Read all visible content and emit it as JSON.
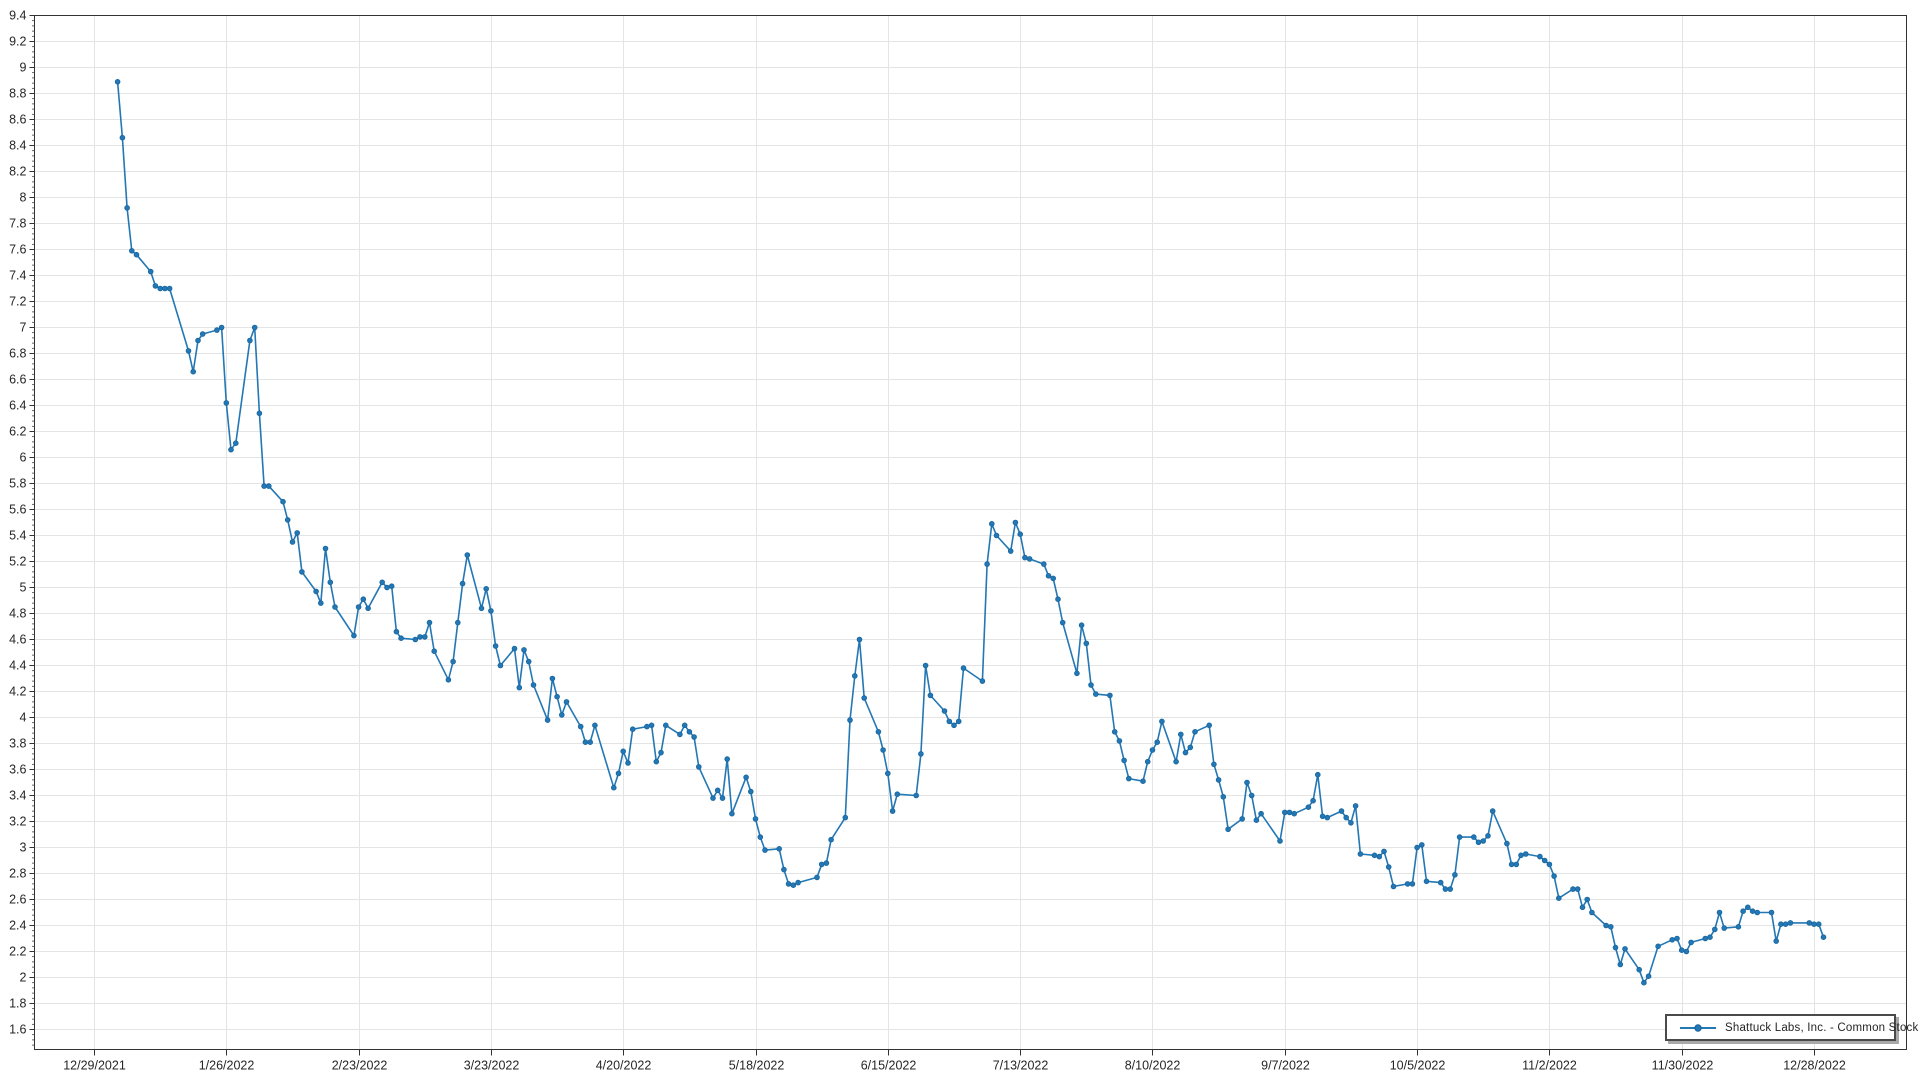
{
  "legend": {
    "label": "Shattuck Labs, Inc. - Common Stock"
  },
  "colors": {
    "line": "#2277B4",
    "marker_fill": "#2277B4",
    "marker_edge": "#18669E",
    "grid": "#E4E4E4",
    "axis": "#333333",
    "tick_text": "#262626",
    "legend_border": "#4A4A4A",
    "legend_shadow": "#A9A9A9",
    "background": "#FFFFFF"
  },
  "chart_data": {
    "type": "line",
    "title": "",
    "xlabel": "",
    "ylabel": "",
    "grid": true,
    "legend_position": "bottom-right",
    "y_axis": {
      "min": 1.45,
      "max": 9.4,
      "tick_step": 0.2,
      "minor_tick_step": 0.04,
      "tick_labels": [
        "9.4",
        "9.2",
        "9",
        "8.8",
        "8.6",
        "8.4",
        "8.2",
        "8",
        "7.8",
        "7.6",
        "7.4",
        "7.2",
        "7",
        "6.8",
        "6.6",
        "6.4",
        "6.2",
        "6",
        "5.8",
        "5.6",
        "5.4",
        "5.2",
        "5",
        "4.8",
        "4.6",
        "4.4",
        "4.2",
        "4",
        "3.8",
        "3.6",
        "3.4",
        "3.2",
        "3",
        "2.8",
        "2.6",
        "2.4",
        "2.2",
        "2",
        "1.8",
        "1.6"
      ]
    },
    "x_axis": {
      "tick_labels": [
        "12/29/2021",
        "1/26/2022",
        "2/23/2022",
        "3/23/2022",
        "4/20/2022",
        "5/18/2022",
        "6/15/2022",
        "7/13/2022",
        "8/10/2022",
        "9/7/2022",
        "10/5/2022",
        "11/2/2022",
        "11/30/2022",
        "12/28/2022"
      ]
    },
    "series": [
      {
        "name": "Shattuck Labs, Inc. - Common Stock",
        "points": [
          [
            "1/3/2022",
            8.89
          ],
          [
            "1/4/2022",
            8.46
          ],
          [
            "1/5/2022",
            7.92
          ],
          [
            "1/6/2022",
            7.59
          ],
          [
            "1/7/2022",
            7.56
          ],
          [
            "1/10/2022",
            7.43
          ],
          [
            "1/11/2022",
            7.32
          ],
          [
            "1/12/2022",
            7.3
          ],
          [
            "1/13/2022",
            7.3
          ],
          [
            "1/14/2022",
            7.3
          ],
          [
            "1/18/2022",
            6.82
          ],
          [
            "1/19/2022",
            6.66
          ],
          [
            "1/20/2022",
            6.9
          ],
          [
            "1/21/2022",
            6.95
          ],
          [
            "1/24/2022",
            6.98
          ],
          [
            "1/25/2022",
            7.0
          ],
          [
            "1/26/2022",
            6.42
          ],
          [
            "1/27/2022",
            6.06
          ],
          [
            "1/28/2022",
            6.11
          ],
          [
            "1/31/2022",
            6.9
          ],
          [
            "2/1/2022",
            7.0
          ],
          [
            "2/2/2022",
            6.34
          ],
          [
            "2/3/2022",
            5.78
          ],
          [
            "2/4/2022",
            5.78
          ],
          [
            "2/7/2022",
            5.66
          ],
          [
            "2/8/2022",
            5.52
          ],
          [
            "2/9/2022",
            5.35
          ],
          [
            "2/10/2022",
            5.42
          ],
          [
            "2/11/2022",
            5.12
          ],
          [
            "2/14/2022",
            4.97
          ],
          [
            "2/15/2022",
            4.88
          ],
          [
            "2/16/2022",
            5.3
          ],
          [
            "2/17/2022",
            5.04
          ],
          [
            "2/18/2022",
            4.85
          ],
          [
            "2/22/2022",
            4.63
          ],
          [
            "2/23/2022",
            4.85
          ],
          [
            "2/24/2022",
            4.91
          ],
          [
            "2/25/2022",
            4.84
          ],
          [
            "2/28/2022",
            5.04
          ],
          [
            "3/1/2022",
            5.0
          ],
          [
            "3/2/2022",
            5.01
          ],
          [
            "3/3/2022",
            4.66
          ],
          [
            "3/4/2022",
            4.61
          ],
          [
            "3/7/2022",
            4.6
          ],
          [
            "3/8/2022",
            4.62
          ],
          [
            "3/9/2022",
            4.62
          ],
          [
            "3/10/2022",
            4.73
          ],
          [
            "3/11/2022",
            4.51
          ],
          [
            "3/14/2022",
            4.29
          ],
          [
            "3/15/2022",
            4.43
          ],
          [
            "3/16/2022",
            4.73
          ],
          [
            "3/17/2022",
            5.03
          ],
          [
            "3/18/2022",
            5.25
          ],
          [
            "3/21/2022",
            4.84
          ],
          [
            "3/22/2022",
            4.99
          ],
          [
            "3/23/2022",
            4.82
          ],
          [
            "3/24/2022",
            4.55
          ],
          [
            "3/25/2022",
            4.4
          ],
          [
            "3/28/2022",
            4.53
          ],
          [
            "3/29/2022",
            4.23
          ],
          [
            "3/30/2022",
            4.52
          ],
          [
            "3/31/2022",
            4.43
          ],
          [
            "4/1/2022",
            4.25
          ],
          [
            "4/4/2022",
            3.98
          ],
          [
            "4/5/2022",
            4.3
          ],
          [
            "4/6/2022",
            4.16
          ],
          [
            "4/7/2022",
            4.02
          ],
          [
            "4/8/2022",
            4.12
          ],
          [
            "4/11/2022",
            3.93
          ],
          [
            "4/12/2022",
            3.81
          ],
          [
            "4/13/2022",
            3.81
          ],
          [
            "4/14/2022",
            3.94
          ],
          [
            "4/18/2022",
            3.46
          ],
          [
            "4/19/2022",
            3.57
          ],
          [
            "4/20/2022",
            3.74
          ],
          [
            "4/21/2022",
            3.65
          ],
          [
            "4/22/2022",
            3.91
          ],
          [
            "4/25/2022",
            3.93
          ],
          [
            "4/26/2022",
            3.94
          ],
          [
            "4/27/2022",
            3.66
          ],
          [
            "4/28/2022",
            3.73
          ],
          [
            "4/29/2022",
            3.94
          ],
          [
            "5/2/2022",
            3.87
          ],
          [
            "5/3/2022",
            3.94
          ],
          [
            "5/4/2022",
            3.89
          ],
          [
            "5/5/2022",
            3.85
          ],
          [
            "5/6/2022",
            3.62
          ],
          [
            "5/9/2022",
            3.38
          ],
          [
            "5/10/2022",
            3.44
          ],
          [
            "5/11/2022",
            3.38
          ],
          [
            "5/12/2022",
            3.68
          ],
          [
            "5/13/2022",
            3.26
          ],
          [
            "5/16/2022",
            3.54
          ],
          [
            "5/17/2022",
            3.43
          ],
          [
            "5/18/2022",
            3.22
          ],
          [
            "5/19/2022",
            3.08
          ],
          [
            "5/20/2022",
            2.98
          ],
          [
            "5/23/2022",
            2.99
          ],
          [
            "5/24/2022",
            2.83
          ],
          [
            "5/25/2022",
            2.72
          ],
          [
            "5/26/2022",
            2.71
          ],
          [
            "5/27/2022",
            2.73
          ],
          [
            "5/31/2022",
            2.77
          ],
          [
            "6/1/2022",
            2.87
          ],
          [
            "6/2/2022",
            2.88
          ],
          [
            "6/3/2022",
            3.06
          ],
          [
            "6/6/2022",
            3.23
          ],
          [
            "6/7/2022",
            3.98
          ],
          [
            "6/8/2022",
            4.32
          ],
          [
            "6/9/2022",
            4.6
          ],
          [
            "6/10/2022",
            4.15
          ],
          [
            "6/13/2022",
            3.89
          ],
          [
            "6/14/2022",
            3.75
          ],
          [
            "6/15/2022",
            3.57
          ],
          [
            "6/16/2022",
            3.28
          ],
          [
            "6/17/2022",
            3.41
          ],
          [
            "6/21/2022",
            3.4
          ],
          [
            "6/22/2022",
            3.72
          ],
          [
            "6/23/2022",
            4.4
          ],
          [
            "6/24/2022",
            4.17
          ],
          [
            "6/27/2022",
            4.05
          ],
          [
            "6/28/2022",
            3.97
          ],
          [
            "6/29/2022",
            3.94
          ],
          [
            "6/30/2022",
            3.97
          ],
          [
            "7/1/2022",
            4.38
          ],
          [
            "7/5/2022",
            4.28
          ],
          [
            "7/6/2022",
            5.18
          ],
          [
            "7/7/2022",
            5.49
          ],
          [
            "7/8/2022",
            5.4
          ],
          [
            "7/11/2022",
            5.28
          ],
          [
            "7/12/2022",
            5.5
          ],
          [
            "7/13/2022",
            5.41
          ],
          [
            "7/14/2022",
            5.23
          ],
          [
            "7/15/2022",
            5.22
          ],
          [
            "7/18/2022",
            5.18
          ],
          [
            "7/19/2022",
            5.09
          ],
          [
            "7/20/2022",
            5.07
          ],
          [
            "7/21/2022",
            4.91
          ],
          [
            "7/22/2022",
            4.73
          ],
          [
            "7/25/2022",
            4.34
          ],
          [
            "7/26/2022",
            4.71
          ],
          [
            "7/27/2022",
            4.57
          ],
          [
            "7/28/2022",
            4.25
          ],
          [
            "7/29/2022",
            4.18
          ],
          [
            "8/1/2022",
            4.17
          ],
          [
            "8/2/2022",
            3.89
          ],
          [
            "8/3/2022",
            3.82
          ],
          [
            "8/4/2022",
            3.67
          ],
          [
            "8/5/2022",
            3.53
          ],
          [
            "8/8/2022",
            3.51
          ],
          [
            "8/9/2022",
            3.66
          ],
          [
            "8/10/2022",
            3.75
          ],
          [
            "8/11/2022",
            3.81
          ],
          [
            "8/12/2022",
            3.97
          ],
          [
            "8/15/2022",
            3.66
          ],
          [
            "8/16/2022",
            3.87
          ],
          [
            "8/17/2022",
            3.73
          ],
          [
            "8/18/2022",
            3.77
          ],
          [
            "8/19/2022",
            3.89
          ],
          [
            "8/22/2022",
            3.94
          ],
          [
            "8/23/2022",
            3.64
          ],
          [
            "8/24/2022",
            3.52
          ],
          [
            "8/25/2022",
            3.39
          ],
          [
            "8/26/2022",
            3.14
          ],
          [
            "8/29/2022",
            3.22
          ],
          [
            "8/30/2022",
            3.5
          ],
          [
            "8/31/2022",
            3.4
          ],
          [
            "9/1/2022",
            3.21
          ],
          [
            "9/2/2022",
            3.26
          ],
          [
            "9/6/2022",
            3.05
          ],
          [
            "9/7/2022",
            3.27
          ],
          [
            "9/8/2022",
            3.27
          ],
          [
            "9/9/2022",
            3.26
          ],
          [
            "9/12/2022",
            3.31
          ],
          [
            "9/13/2022",
            3.36
          ],
          [
            "9/14/2022",
            3.56
          ],
          [
            "9/15/2022",
            3.24
          ],
          [
            "9/16/2022",
            3.23
          ],
          [
            "9/19/2022",
            3.28
          ],
          [
            "9/20/2022",
            3.23
          ],
          [
            "9/21/2022",
            3.19
          ],
          [
            "9/22/2022",
            3.32
          ],
          [
            "9/23/2022",
            2.95
          ],
          [
            "9/26/2022",
            2.94
          ],
          [
            "9/27/2022",
            2.93
          ],
          [
            "9/28/2022",
            2.97
          ],
          [
            "9/29/2022",
            2.85
          ],
          [
            "9/30/2022",
            2.7
          ],
          [
            "10/3/2022",
            2.72
          ],
          [
            "10/4/2022",
            2.72
          ],
          [
            "10/5/2022",
            3.0
          ],
          [
            "10/6/2022",
            3.02
          ],
          [
            "10/7/2022",
            2.74
          ],
          [
            "10/10/2022",
            2.73
          ],
          [
            "10/11/2022",
            2.68
          ],
          [
            "10/12/2022",
            2.68
          ],
          [
            "10/13/2022",
            2.79
          ],
          [
            "10/14/2022",
            3.08
          ],
          [
            "10/17/2022",
            3.08
          ],
          [
            "10/18/2022",
            3.04
          ],
          [
            "10/19/2022",
            3.05
          ],
          [
            "10/20/2022",
            3.09
          ],
          [
            "10/21/2022",
            3.28
          ],
          [
            "10/24/2022",
            3.03
          ],
          [
            "10/25/2022",
            2.87
          ],
          [
            "10/26/2022",
            2.87
          ],
          [
            "10/27/2022",
            2.94
          ],
          [
            "10/28/2022",
            2.95
          ],
          [
            "10/31/2022",
            2.93
          ],
          [
            "11/1/2022",
            2.9
          ],
          [
            "11/2/2022",
            2.87
          ],
          [
            "11/3/2022",
            2.78
          ],
          [
            "11/4/2022",
            2.61
          ],
          [
            "11/7/2022",
            2.68
          ],
          [
            "11/8/2022",
            2.68
          ],
          [
            "11/9/2022",
            2.54
          ],
          [
            "11/10/2022",
            2.6
          ],
          [
            "11/11/2022",
            2.5
          ],
          [
            "11/14/2022",
            2.4
          ],
          [
            "11/15/2022",
            2.39
          ],
          [
            "11/16/2022",
            2.23
          ],
          [
            "11/17/2022",
            2.1
          ],
          [
            "11/18/2022",
            2.22
          ],
          [
            "11/21/2022",
            2.06
          ],
          [
            "11/22/2022",
            1.96
          ],
          [
            "11/23/2022",
            2.01
          ],
          [
            "11/25/2022",
            2.24
          ],
          [
            "11/28/2022",
            2.29
          ],
          [
            "11/29/2022",
            2.3
          ],
          [
            "11/30/2022",
            2.21
          ],
          [
            "12/1/2022",
            2.2
          ],
          [
            "12/2/2022",
            2.27
          ],
          [
            "12/5/2022",
            2.3
          ],
          [
            "12/6/2022",
            2.31
          ],
          [
            "12/7/2022",
            2.37
          ],
          [
            "12/8/2022",
            2.5
          ],
          [
            "12/9/2022",
            2.38
          ],
          [
            "12/12/2022",
            2.39
          ],
          [
            "12/13/2022",
            2.51
          ],
          [
            "12/14/2022",
            2.54
          ],
          [
            "12/15/2022",
            2.51
          ],
          [
            "12/16/2022",
            2.5
          ],
          [
            "12/19/2022",
            2.5
          ],
          [
            "12/20/2022",
            2.28
          ],
          [
            "12/21/2022",
            2.41
          ],
          [
            "12/22/2022",
            2.41
          ],
          [
            "12/23/2022",
            2.42
          ],
          [
            "12/27/2022",
            2.42
          ],
          [
            "12/28/2022",
            2.41
          ],
          [
            "12/29/2022",
            2.41
          ],
          [
            "12/30/2022",
            2.31
          ]
        ]
      }
    ]
  }
}
